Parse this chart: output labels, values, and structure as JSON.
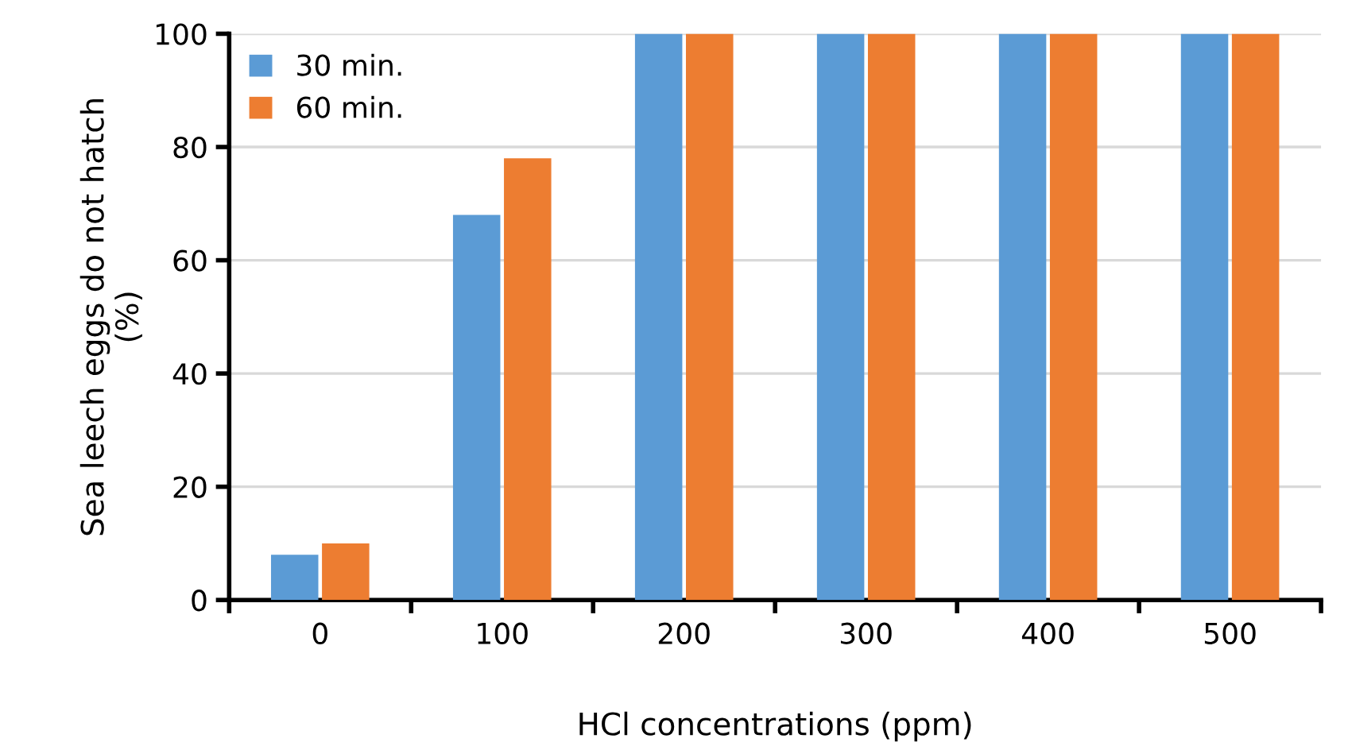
{
  "chart_data": {
    "type": "bar",
    "xlabel": "HCl concentrations (ppm)",
    "ylabel": "Sea leech eggs do not hatch\n(%)",
    "categories": [
      "0",
      "100",
      "200",
      "300",
      "400",
      "500"
    ],
    "series": [
      {
        "name": "30 min.",
        "color": "#5b9bd5",
        "values": [
          8,
          68,
          100,
          100,
          100,
          100
        ]
      },
      {
        "name": "60 min.",
        "color": "#ed7d31",
        "values": [
          10,
          78,
          100,
          100,
          100,
          100
        ]
      }
    ],
    "ylim": [
      0,
      100
    ],
    "yticks": [
      0,
      20,
      40,
      60,
      80,
      100
    ],
    "grid": "y",
    "legend": "top left"
  }
}
